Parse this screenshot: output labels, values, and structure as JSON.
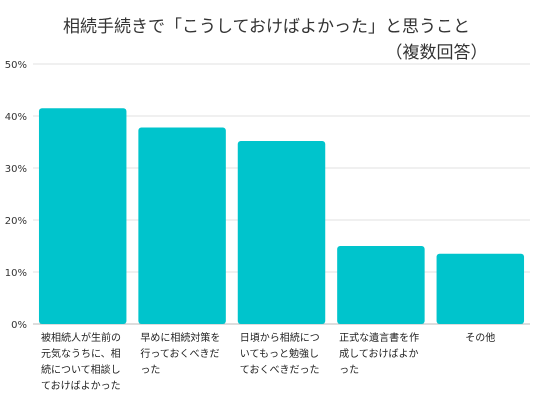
{
  "chart_data": {
    "type": "bar",
    "title": [
      "相続手続きで「こうしておけばよかった」と思うこと",
      "（複数回答）"
    ],
    "categories": [
      "被相続人が生前の元気なうちに、相続について相談しておけばよかった",
      "早めに相続対策を行っておくべきだった",
      "日頃から相続についてもっと勉強しておくべきだった",
      "正式な遺言書を作成しておけばよかった",
      "その他"
    ],
    "values": [
      41.5,
      37.8,
      35.2,
      15.0,
      13.5
    ],
    "y_ticks": [
      "0%",
      "10%",
      "20%",
      "30%",
      "40%",
      "50%"
    ],
    "ylim": [
      0,
      50
    ],
    "grid": true,
    "legend": "none",
    "bar_color": "#00c4cc"
  }
}
